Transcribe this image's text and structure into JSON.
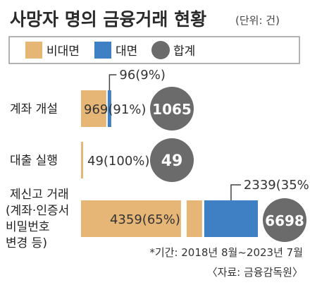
{
  "chart_data": {
    "type": "bar",
    "stacked": true,
    "orientation": "horizontal",
    "title": "사망자 명의 금융거래 현황",
    "unit_label": "(단위: 건)",
    "legend_position": "top",
    "categories": [
      "계좌 개설",
      "대출 실행",
      "제신고 거래"
    ],
    "category_sublabels": [
      [],
      [],
      [
        "(계좌·인증서",
        "비밀번호",
        "변경 등)"
      ]
    ],
    "series": [
      {
        "name": "비대면",
        "color": "#e6b677",
        "values": [
          969,
          49,
          4359
        ],
        "value_labels": [
          "969(91%)",
          "49(100%)",
          "4359(65%)"
        ]
      },
      {
        "name": "대면",
        "color": "#3f7fc4",
        "values": [
          96,
          0,
          2339
        ],
        "value_labels": [
          "96(9%)",
          "",
          "2339(35%)"
        ]
      }
    ],
    "totals": {
      "name": "합계",
      "color": "#6b6b6b",
      "labels": [
        "1065",
        "49",
        "6698"
      ]
    },
    "grid": false,
    "footnotes": [
      "*기간: 2018년 8월~2023년 7월",
      "〈자료: 금융감독원〉"
    ]
  }
}
